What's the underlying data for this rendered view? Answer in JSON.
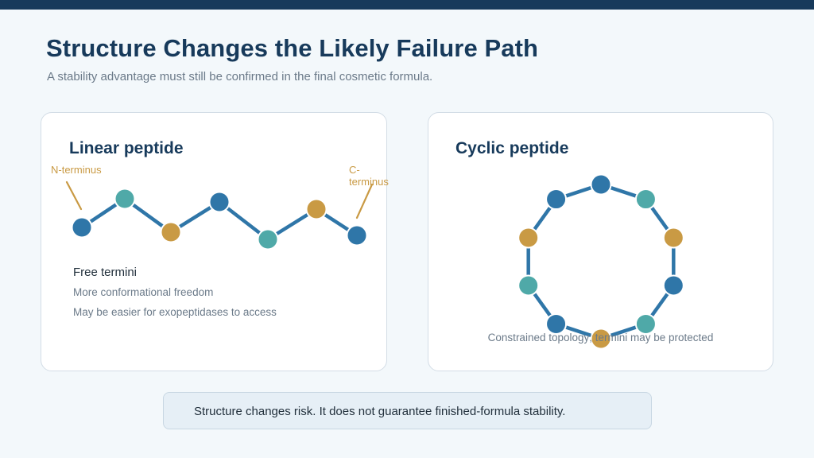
{
  "title": "Structure Changes the Likely Failure Path",
  "subtitle": "A stability advantage must still be confirmed in the final cosmetic formula.",
  "colors": {
    "dark_blue": "#2f76a8",
    "teal": "#4fa9a8",
    "gold": "#c99a44",
    "bond": "#2f76a8",
    "navy": "#173a5b"
  },
  "linear": {
    "title": "Linear peptide",
    "n_terminus_label": "N-terminus",
    "c_terminus_label": "C-terminus",
    "residues": [
      "dark_blue",
      "teal",
      "gold",
      "dark_blue",
      "teal",
      "gold",
      "dark_blue"
    ],
    "feature_title": "Free termini",
    "features": [
      "More conformational freedom",
      "May be easier for exopeptidases to access"
    ]
  },
  "cyclic": {
    "title": "Cyclic peptide",
    "residues": [
      "dark_blue",
      "teal",
      "gold",
      "dark_blue",
      "teal",
      "gold",
      "dark_blue",
      "teal",
      "gold",
      "dark_blue"
    ],
    "caption": "Constrained topology; termini may be protected"
  },
  "note": "Structure changes risk. It does not guarantee finished-formula stability."
}
